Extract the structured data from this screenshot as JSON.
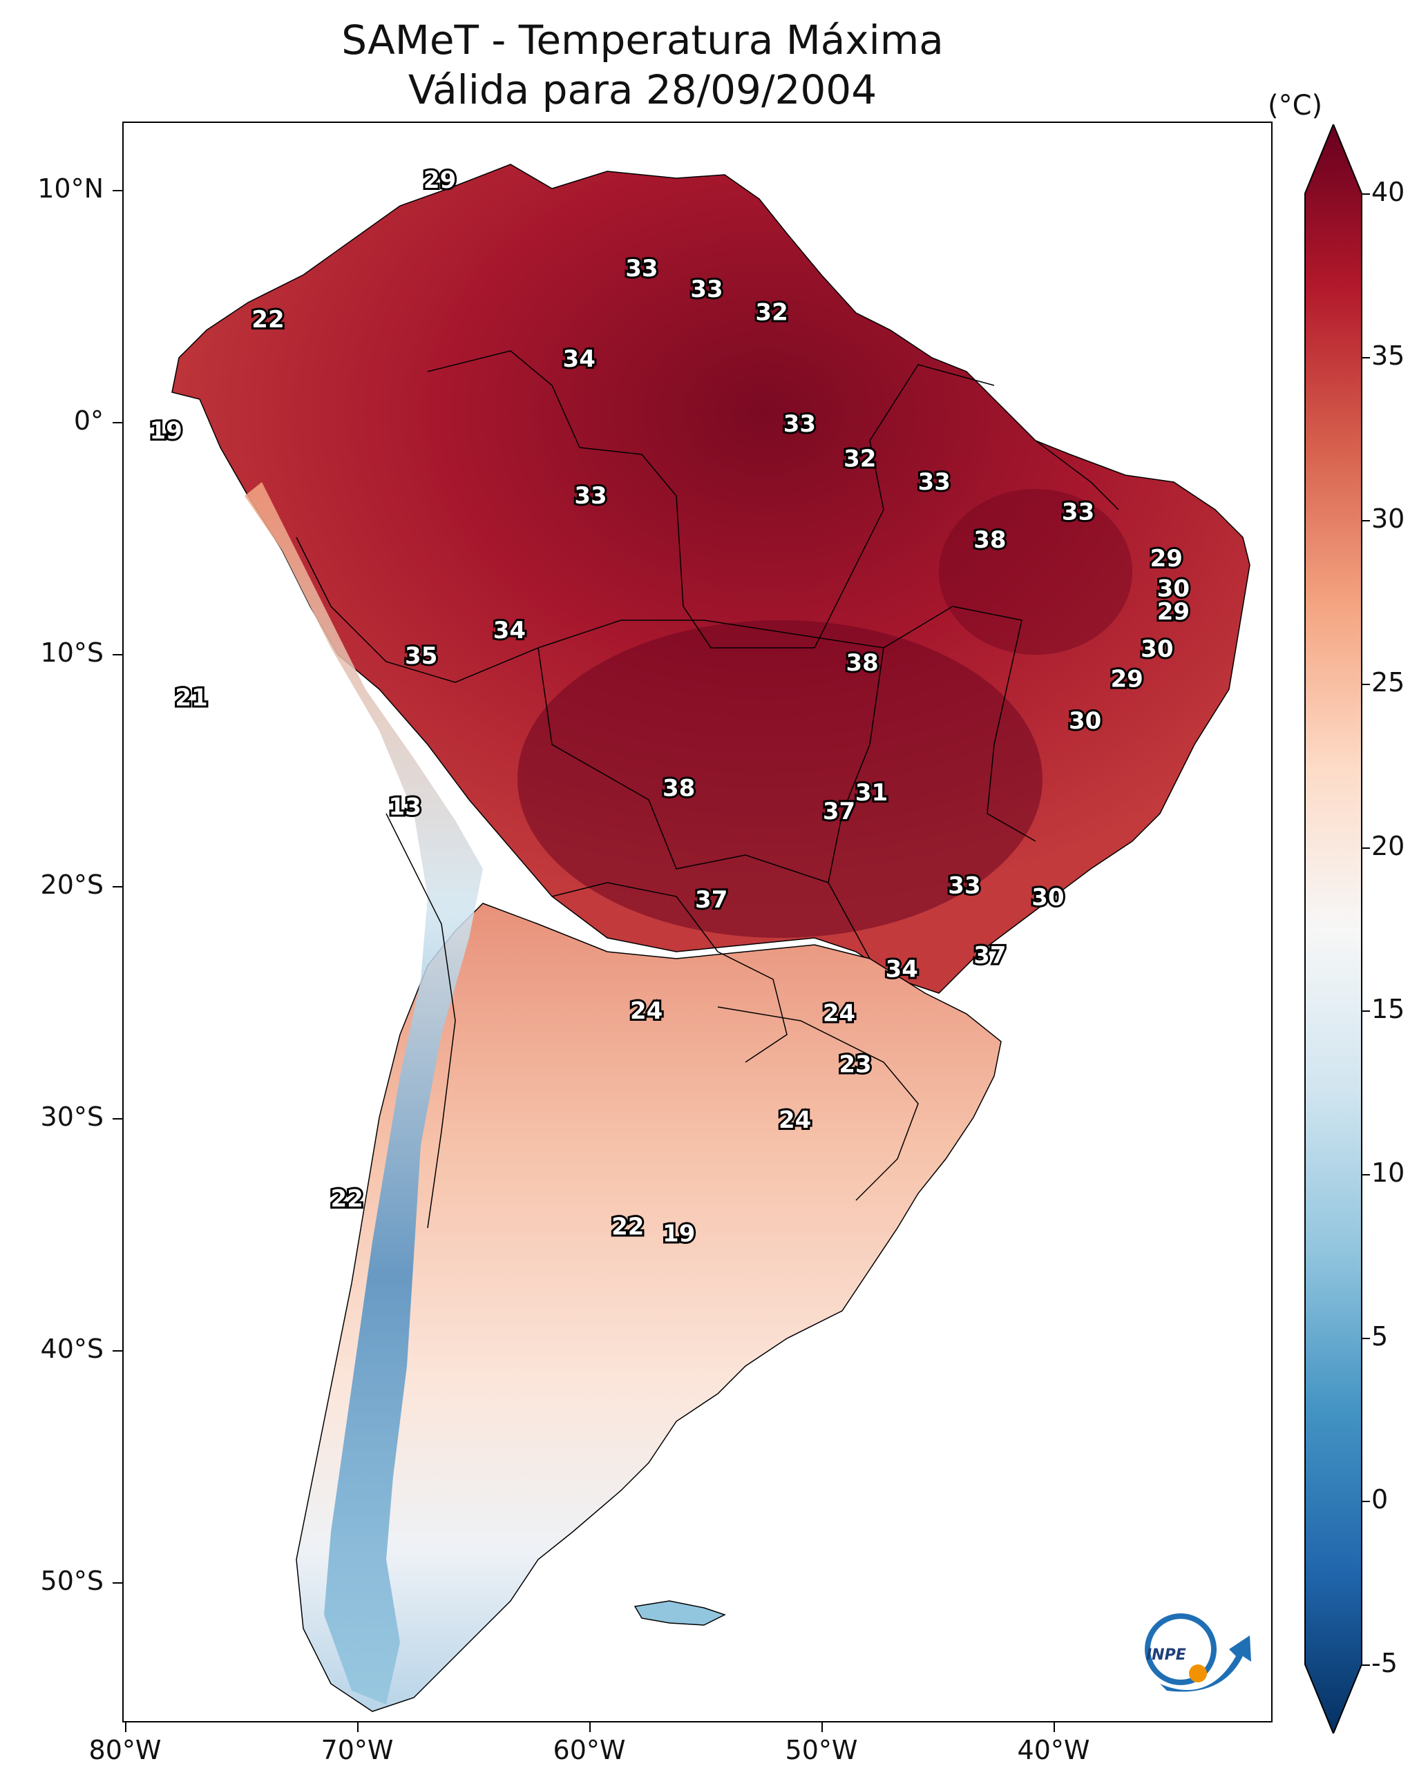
{
  "title": {
    "line1": "SAMeT - Temperatura Máxima",
    "line2": "Válida para 28/09/2004"
  },
  "axes": {
    "lat_labels": [
      "10°N",
      "0°",
      "10°S",
      "20°S",
      "30°S",
      "40°S",
      "50°S"
    ],
    "lon_labels": [
      "80°W",
      "70°W",
      "60°W",
      "50°W",
      "40°W"
    ]
  },
  "colorbar": {
    "unit": "(°C)",
    "ticks": [
      "40",
      "35",
      "30",
      "25",
      "20",
      "15",
      "10",
      "5",
      "0",
      "-5"
    ],
    "range": [
      -5,
      40
    ],
    "colors": [
      "#053061",
      "#2166ac",
      "#4393c3",
      "#92c5de",
      "#d1e5f0",
      "#f7f7f7",
      "#fddbc7",
      "#f4a582",
      "#d6604d",
      "#b2182b",
      "#67001f"
    ]
  },
  "station_labels": [
    {
      "text": "29",
      "lon": -66.5,
      "lat": 10.5
    },
    {
      "text": "33",
      "lon": -57.8,
      "lat": 6.7
    },
    {
      "text": "33",
      "lon": -55.0,
      "lat": 5.8
    },
    {
      "text": "32",
      "lon": -52.2,
      "lat": 4.8
    },
    {
      "text": "22",
      "lon": -73.9,
      "lat": 4.5
    },
    {
      "text": "34",
      "lon": -60.5,
      "lat": 2.8
    },
    {
      "text": "19",
      "lon": -78.3,
      "lat": -0.3
    },
    {
      "text": "33",
      "lon": -51.0,
      "lat": 0.0
    },
    {
      "text": "32",
      "lon": -48.4,
      "lat": -1.5
    },
    {
      "text": "33",
      "lon": -45.2,
      "lat": -2.5
    },
    {
      "text": "33",
      "lon": -60.0,
      "lat": -3.1
    },
    {
      "text": "33",
      "lon": -39.0,
      "lat": -3.8
    },
    {
      "text": "38",
      "lon": -42.8,
      "lat": -5.0
    },
    {
      "text": "29",
      "lon": -35.2,
      "lat": -5.8
    },
    {
      "text": "30",
      "lon": -34.9,
      "lat": -7.1
    },
    {
      "text": "29",
      "lon": -34.9,
      "lat": -8.1
    },
    {
      "text": "34",
      "lon": -63.5,
      "lat": -8.9
    },
    {
      "text": "30",
      "lon": -35.6,
      "lat": -9.7
    },
    {
      "text": "35",
      "lon": -67.3,
      "lat": -10.0
    },
    {
      "text": "38",
      "lon": -48.3,
      "lat": -10.3
    },
    {
      "text": "29",
      "lon": -36.9,
      "lat": -11.0
    },
    {
      "text": "21",
      "lon": -77.2,
      "lat": -11.8
    },
    {
      "text": "30",
      "lon": -38.7,
      "lat": -12.8
    },
    {
      "text": "38",
      "lon": -56.2,
      "lat": -15.7
    },
    {
      "text": "31",
      "lon": -47.9,
      "lat": -15.9
    },
    {
      "text": "37",
      "lon": -49.3,
      "lat": -16.7
    },
    {
      "text": "13",
      "lon": -68.0,
      "lat": -16.5
    },
    {
      "text": "33",
      "lon": -43.9,
      "lat": -19.9
    },
    {
      "text": "30",
      "lon": -40.3,
      "lat": -20.4
    },
    {
      "text": "37",
      "lon": -54.8,
      "lat": -20.5
    },
    {
      "text": "37",
      "lon": -42.8,
      "lat": -22.9
    },
    {
      "text": "34",
      "lon": -46.6,
      "lat": -23.5
    },
    {
      "text": "24",
      "lon": -57.6,
      "lat": -25.3
    },
    {
      "text": "24",
      "lon": -49.3,
      "lat": -25.4
    },
    {
      "text": "23",
      "lon": -48.6,
      "lat": -27.6
    },
    {
      "text": "24",
      "lon": -51.2,
      "lat": -30.0
    },
    {
      "text": "22",
      "lon": -70.5,
      "lat": -33.4
    },
    {
      "text": "22",
      "lon": -58.4,
      "lat": -34.6
    },
    {
      "text": "19",
      "lon": -56.2,
      "lat": -34.9
    }
  ],
  "logo": {
    "text": "INPE"
  }
}
